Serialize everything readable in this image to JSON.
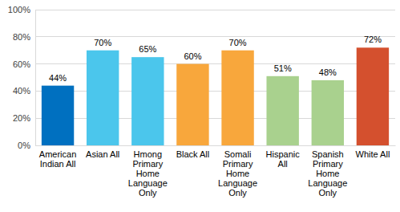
{
  "chart_data": {
    "type": "bar",
    "categories": [
      "American Indian All",
      "Asian All",
      "Hmong Primary Home Language Only",
      "Black All",
      "Somali Primary Home Language Only",
      "Hispanic All",
      "Spanish Primary Home Language Only",
      "White All"
    ],
    "values": [
      44,
      70,
      65,
      60,
      70,
      51,
      48,
      72
    ],
    "value_labels": [
      "44%",
      "70%",
      "65%",
      "60%",
      "70%",
      "51%",
      "48%",
      "72%"
    ],
    "colors": [
      "#0070c0",
      "#4bc6ec",
      "#4bc6ec",
      "#f8a73c",
      "#f8a73c",
      "#a9d18e",
      "#a9d18e",
      "#d4502e"
    ],
    "ylim": [
      0,
      100
    ],
    "yticks": [
      {
        "value": 0,
        "label": "0%"
      },
      {
        "value": 20,
        "label": "20%"
      },
      {
        "value": 40,
        "label": "40%"
      },
      {
        "value": 60,
        "label": "60%"
      },
      {
        "value": 80,
        "label": "80%"
      },
      {
        "value": 100,
        "label": "100%"
      }
    ],
    "grid": true,
    "data_labels": true
  }
}
